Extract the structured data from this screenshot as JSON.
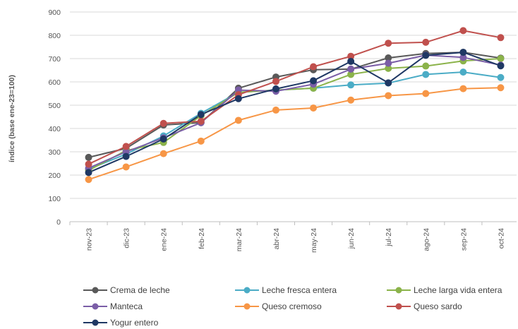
{
  "chart_data": {
    "type": "line",
    "ylabel": "índice (base ene-23=100)",
    "ylim": [
      0,
      900
    ],
    "yticks": [
      0,
      100,
      200,
      300,
      400,
      500,
      600,
      700,
      800,
      900
    ],
    "categories": [
      "nov-23",
      "dic-23",
      "ene-24",
      "feb-24",
      "mar-24",
      "abr-24",
      "may-24",
      "jun-24",
      "jul-24",
      "ago-24",
      "sep-24",
      "oct-24"
    ],
    "grid": true,
    "legend_position": "bottom",
    "series": [
      {
        "name": "Crema de leche",
        "color": "#595959",
        "values": [
          276,
          315,
          415,
          425,
          573,
          621,
          652,
          655,
          703,
          722,
          727,
          702
        ]
      },
      {
        "name": "Leche fresca entera",
        "color": "#4BACC6",
        "values": [
          225,
          290,
          368,
          465,
          555,
          565,
          573,
          587,
          595,
          632,
          642,
          619
        ]
      },
      {
        "name": "Leche larga vida entera",
        "color": "#8BB34A",
        "values": [
          220,
          305,
          340,
          455,
          555,
          565,
          573,
          632,
          658,
          668,
          690,
          700
        ]
      },
      {
        "name": "Manteca",
        "color": "#7B5EA7",
        "values": [
          230,
          300,
          360,
          425,
          565,
          560,
          590,
          655,
          680,
          715,
          705,
          672
        ]
      },
      {
        "name": "Queso cremoso",
        "color": "#F79646",
        "values": [
          181,
          235,
          292,
          346,
          435,
          479,
          488,
          522,
          541,
          550,
          571,
          575
        ]
      },
      {
        "name": "Queso sardo",
        "color": "#C0504D",
        "values": [
          247,
          323,
          422,
          431,
          545,
          602,
          665,
          710,
          766,
          770,
          820,
          790
        ]
      },
      {
        "name": "Yogur entero",
        "color": "#1F3864",
        "values": [
          211,
          280,
          355,
          460,
          528,
          570,
          605,
          688,
          596,
          714,
          727,
          669
        ]
      }
    ]
  }
}
